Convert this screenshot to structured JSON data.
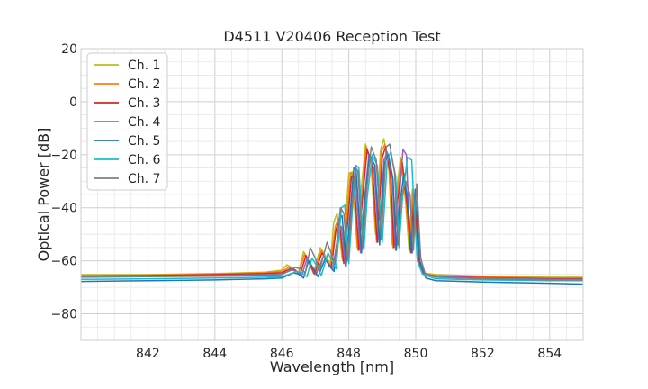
{
  "chart_data": {
    "type": "line",
    "title": "D4511 V20406 Reception Test",
    "xlabel": "Wavelength [nm]",
    "ylabel": "Optical Power [dB]",
    "xlim": [
      840,
      855
    ],
    "ylim": [
      -90,
      20
    ],
    "x_ticks": [
      "842",
      "844",
      "846",
      "848",
      "850",
      "852",
      "854"
    ],
    "y_ticks": [
      "20",
      "0",
      "−20",
      "−40",
      "−60",
      "−80"
    ],
    "grid": true,
    "legend_position": "top-left",
    "series": [
      {
        "name": "Ch. 1",
        "color": "#bcbd22",
        "points": [
          [
            840,
            -65.2
          ],
          [
            842,
            -65.2
          ],
          [
            844,
            -64.8
          ],
          [
            845.5,
            -64.3
          ],
          [
            846.0,
            -63.5
          ],
          [
            846.15,
            -61.5
          ],
          [
            846.3,
            -62.5
          ],
          [
            846.5,
            -64.5
          ],
          [
            846.65,
            -56.5
          ],
          [
            846.8,
            -60
          ],
          [
            846.95,
            -64.5
          ],
          [
            847.15,
            -55
          ],
          [
            847.3,
            -58
          ],
          [
            847.45,
            -61
          ],
          [
            847.55,
            -45.5
          ],
          [
            847.65,
            -42
          ],
          [
            847.8,
            -59
          ],
          [
            847.9,
            -46
          ],
          [
            848.0,
            -27
          ],
          [
            848.1,
            -26.5
          ],
          [
            848.25,
            -55
          ],
          [
            848.35,
            -36
          ],
          [
            848.5,
            -16
          ],
          [
            848.65,
            -22
          ],
          [
            848.8,
            -50
          ],
          [
            848.95,
            -18
          ],
          [
            849.05,
            -14
          ],
          [
            849.2,
            -26
          ],
          [
            849.3,
            -54
          ],
          [
            849.4,
            -36
          ],
          [
            849.55,
            -21
          ],
          [
            849.7,
            -38
          ],
          [
            849.8,
            -56
          ],
          [
            849.9,
            -33
          ],
          [
            850.05,
            -59
          ],
          [
            850.2,
            -64.5
          ],
          [
            850.6,
            -65.2
          ],
          [
            852,
            -65.8
          ],
          [
            854,
            -66.2
          ],
          [
            855,
            -66.2
          ]
        ]
      },
      {
        "name": "Ch. 2",
        "color": "#ff7f0e",
        "points": [
          [
            840,
            -65.6
          ],
          [
            842,
            -65.4
          ],
          [
            844,
            -65.0
          ],
          [
            845.5,
            -64.5
          ],
          [
            846.0,
            -64.0
          ],
          [
            846.2,
            -62.5
          ],
          [
            846.35,
            -63
          ],
          [
            846.5,
            -64.8
          ],
          [
            846.68,
            -57.5
          ],
          [
            846.82,
            -61
          ],
          [
            846.95,
            -64.8
          ],
          [
            847.18,
            -56
          ],
          [
            847.3,
            -59
          ],
          [
            847.45,
            -62
          ],
          [
            847.6,
            -47
          ],
          [
            847.7,
            -44
          ],
          [
            847.82,
            -60
          ],
          [
            847.92,
            -47
          ],
          [
            848.05,
            -27
          ],
          [
            848.12,
            -27.5
          ],
          [
            848.27,
            -56
          ],
          [
            848.38,
            -37
          ],
          [
            848.52,
            -17
          ],
          [
            848.67,
            -23
          ],
          [
            848.83,
            -53
          ],
          [
            848.97,
            -19
          ],
          [
            849.08,
            -16
          ],
          [
            849.22,
            -27
          ],
          [
            849.32,
            -55
          ],
          [
            849.42,
            -37
          ],
          [
            849.57,
            -22
          ],
          [
            849.72,
            -39
          ],
          [
            849.82,
            -56
          ],
          [
            849.92,
            -34
          ],
          [
            850.07,
            -59
          ],
          [
            850.2,
            -64.8
          ],
          [
            850.6,
            -65.5
          ],
          [
            852,
            -66.0
          ],
          [
            854,
            -66.5
          ],
          [
            855,
            -66.5
          ]
        ]
      },
      {
        "name": "Ch. 3",
        "color": "#d62728",
        "points": [
          [
            840,
            -65.8
          ],
          [
            842,
            -65.6
          ],
          [
            844,
            -65.2
          ],
          [
            845.5,
            -64.8
          ],
          [
            846.0,
            -64.5
          ],
          [
            846.25,
            -63
          ],
          [
            846.4,
            -63.5
          ],
          [
            846.55,
            -65
          ],
          [
            846.72,
            -58
          ],
          [
            846.85,
            -61.5
          ],
          [
            846.98,
            -65
          ],
          [
            847.2,
            -57
          ],
          [
            847.33,
            -60
          ],
          [
            847.48,
            -62.5
          ],
          [
            847.62,
            -48
          ],
          [
            847.72,
            -45
          ],
          [
            847.85,
            -61
          ],
          [
            847.95,
            -48
          ],
          [
            848.08,
            -28
          ],
          [
            848.15,
            -28.5
          ],
          [
            848.3,
            -56
          ],
          [
            848.4,
            -38
          ],
          [
            848.55,
            -18
          ],
          [
            848.7,
            -24
          ],
          [
            848.85,
            -53
          ],
          [
            849.0,
            -21
          ],
          [
            849.1,
            -17
          ],
          [
            849.25,
            -28
          ],
          [
            849.35,
            -55
          ],
          [
            849.45,
            -38
          ],
          [
            849.6,
            -23
          ],
          [
            849.75,
            -40
          ],
          [
            849.85,
            -57
          ],
          [
            849.95,
            -35
          ],
          [
            850.1,
            -60
          ],
          [
            850.22,
            -65
          ],
          [
            850.6,
            -65.8
          ],
          [
            852,
            -66.3
          ],
          [
            854,
            -66.8
          ],
          [
            855,
            -66.8
          ]
        ]
      },
      {
        "name": "Ch. 4",
        "color": "#9467bd",
        "points": [
          [
            840,
            -66.0
          ],
          [
            842,
            -65.9
          ],
          [
            844,
            -65.6
          ],
          [
            845.5,
            -65.2
          ],
          [
            846.0,
            -65.0
          ],
          [
            846.3,
            -63.5
          ],
          [
            846.45,
            -64
          ],
          [
            846.6,
            -65.5
          ],
          [
            846.75,
            -59
          ],
          [
            846.9,
            -62
          ],
          [
            847.02,
            -65.2
          ],
          [
            847.25,
            -58
          ],
          [
            847.38,
            -61
          ],
          [
            847.52,
            -63
          ],
          [
            847.68,
            -50
          ],
          [
            847.78,
            -47
          ],
          [
            847.9,
            -62
          ],
          [
            848.0,
            -50
          ],
          [
            848.12,
            -30
          ],
          [
            848.2,
            -29
          ],
          [
            848.35,
            -57
          ],
          [
            848.45,
            -39
          ],
          [
            848.6,
            -20
          ],
          [
            848.75,
            -25
          ],
          [
            848.9,
            -53
          ],
          [
            849.05,
            -22
          ],
          [
            849.15,
            -19
          ],
          [
            849.3,
            -29
          ],
          [
            849.4,
            -56
          ],
          [
            849.5,
            -38
          ],
          [
            849.62,
            -18
          ],
          [
            849.72,
            -20
          ],
          [
            849.8,
            -45
          ],
          [
            849.9,
            -57
          ],
          [
            850.0,
            -34
          ],
          [
            850.12,
            -60
          ],
          [
            850.25,
            -65.2
          ],
          [
            850.6,
            -66.0
          ],
          [
            852,
            -66.5
          ],
          [
            854,
            -67.0
          ],
          [
            855,
            -67.0
          ]
        ]
      },
      {
        "name": "Ch. 5",
        "color": "#1f77b4",
        "points": [
          [
            840,
            -67.8
          ],
          [
            842,
            -67.5
          ],
          [
            844,
            -67.2
          ],
          [
            845.5,
            -66.8
          ],
          [
            846.0,
            -66.5
          ],
          [
            846.35,
            -64.5
          ],
          [
            846.5,
            -65
          ],
          [
            846.65,
            -66.5
          ],
          [
            846.8,
            -60
          ],
          [
            846.95,
            -63
          ],
          [
            847.08,
            -66
          ],
          [
            847.3,
            -59
          ],
          [
            847.42,
            -62
          ],
          [
            847.56,
            -64
          ],
          [
            847.72,
            -44
          ],
          [
            847.8,
            -43
          ],
          [
            847.92,
            -62
          ],
          [
            848.02,
            -45
          ],
          [
            848.15,
            -25
          ],
          [
            848.22,
            -26
          ],
          [
            848.38,
            -57
          ],
          [
            848.48,
            -37
          ],
          [
            848.62,
            -20
          ],
          [
            848.78,
            -24
          ],
          [
            848.92,
            -54
          ],
          [
            849.07,
            -23
          ],
          [
            849.18,
            -20
          ],
          [
            849.32,
            -29
          ],
          [
            849.42,
            -56
          ],
          [
            849.52,
            -39
          ],
          [
            849.65,
            -27
          ],
          [
            849.78,
            -40
          ],
          [
            849.88,
            -57
          ],
          [
            849.98,
            -33
          ],
          [
            850.12,
            -60
          ],
          [
            850.3,
            -66.5
          ],
          [
            850.6,
            -67.5
          ],
          [
            852,
            -68.0
          ],
          [
            854,
            -68.5
          ],
          [
            855,
            -68.8
          ]
        ]
      },
      {
        "name": "Ch. 6",
        "color": "#17becf",
        "points": [
          [
            840,
            -67.0
          ],
          [
            842,
            -66.8
          ],
          [
            844,
            -66.5
          ],
          [
            845.5,
            -66.2
          ],
          [
            846.0,
            -66.0
          ],
          [
            846.45,
            -64
          ],
          [
            846.6,
            -64.5
          ],
          [
            846.75,
            -66
          ],
          [
            846.9,
            -59
          ],
          [
            847.05,
            -62
          ],
          [
            847.18,
            -65.5
          ],
          [
            847.38,
            -57
          ],
          [
            847.5,
            -60
          ],
          [
            847.62,
            -63
          ],
          [
            847.78,
            -40
          ],
          [
            847.88,
            -39
          ],
          [
            848.0,
            -61
          ],
          [
            848.1,
            -42
          ],
          [
            848.22,
            -24
          ],
          [
            848.3,
            -25
          ],
          [
            848.45,
            -56
          ],
          [
            848.55,
            -36
          ],
          [
            848.7,
            -20
          ],
          [
            848.85,
            -24
          ],
          [
            849.0,
            -53
          ],
          [
            849.15,
            -22
          ],
          [
            849.25,
            -19
          ],
          [
            849.4,
            -28
          ],
          [
            849.5,
            -55
          ],
          [
            849.6,
            -37
          ],
          [
            849.75,
            -21
          ],
          [
            849.88,
            -22
          ],
          [
            849.95,
            -40
          ],
          [
            850.05,
            -60
          ],
          [
            850.2,
            -65
          ],
          [
            850.6,
            -66.8
          ],
          [
            852,
            -67.2
          ],
          [
            854,
            -67.5
          ],
          [
            855,
            -67.5
          ]
        ]
      },
      {
        "name": "Ch. 7",
        "color": "#7f7f7f",
        "points": [
          [
            840,
            -66.2
          ],
          [
            842,
            -66.0
          ],
          [
            844,
            -65.8
          ],
          [
            845.5,
            -65.5
          ],
          [
            846.0,
            -65.2
          ],
          [
            846.4,
            -62.5
          ],
          [
            846.55,
            -63
          ],
          [
            846.7,
            -64.5
          ],
          [
            846.85,
            -55
          ],
          [
            847.0,
            -59
          ],
          [
            847.12,
            -64
          ],
          [
            847.35,
            -53
          ],
          [
            847.47,
            -57
          ],
          [
            847.58,
            -61
          ],
          [
            847.75,
            -40
          ],
          [
            847.85,
            -42
          ],
          [
            847.97,
            -60
          ],
          [
            848.07,
            -43
          ],
          [
            848.2,
            -25
          ],
          [
            848.27,
            -26
          ],
          [
            848.42,
            -55
          ],
          [
            848.52,
            -35
          ],
          [
            848.67,
            -17
          ],
          [
            848.82,
            -22
          ],
          [
            848.97,
            -52
          ],
          [
            849.12,
            -17
          ],
          [
            849.22,
            -16
          ],
          [
            849.37,
            -27
          ],
          [
            849.47,
            -54
          ],
          [
            849.57,
            -36
          ],
          [
            849.7,
            -30
          ],
          [
            849.83,
            -35
          ],
          [
            849.93,
            -56
          ],
          [
            850.03,
            -31
          ],
          [
            850.15,
            -59
          ],
          [
            850.28,
            -64.8
          ],
          [
            850.6,
            -66.2
          ],
          [
            852,
            -66.8
          ],
          [
            854,
            -67.2
          ],
          [
            855,
            -67.2
          ]
        ]
      }
    ]
  }
}
